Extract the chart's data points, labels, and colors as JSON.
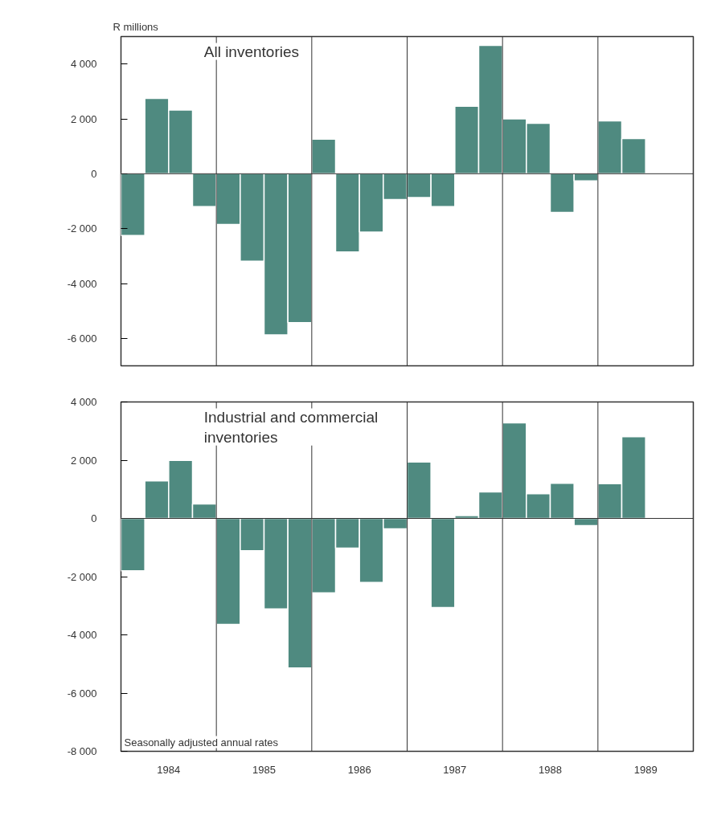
{
  "chart_data": [
    {
      "type": "bar",
      "title": "All inventories",
      "ylabel": "R millions",
      "color": "#4f8a80",
      "x": [
        1984.125,
        1984.375,
        1984.625,
        1984.875,
        1985.125,
        1985.375,
        1985.625,
        1985.875,
        1986.125,
        1986.375,
        1986.625,
        1986.875,
        1987.125,
        1987.375,
        1987.625,
        1987.875,
        1988.125,
        1988.375,
        1988.625,
        1988.875,
        1989.125,
        1989.375
      ],
      "values": [
        -2250,
        2750,
        2320,
        -1200,
        -1850,
        -3190,
        -5870,
        -5430,
        1260,
        -2850,
        -2130,
        -940,
        -870,
        -1200,
        2460,
        4680,
        2000,
        1840,
        -1410,
        -260,
        1930,
        1280
      ],
      "xlim": [
        1984,
        1990
      ],
      "ylim": [
        -7000,
        5000
      ],
      "yticks": [
        {
          "value": 4000,
          "label": "4 000"
        },
        {
          "value": 2000,
          "label": "2 000"
        },
        0,
        {
          "value": -2000,
          "label": "-2 000"
        },
        {
          "value": -4000,
          "label": "-4 000"
        },
        {
          "value": -6000,
          "label": "-6 000"
        }
      ],
      "tick_labels": "y",
      "grid": false,
      "ref_lines": [
        {
          "axis": "y",
          "value": 0
        },
        {
          "axis": "x",
          "value": 1985
        },
        {
          "axis": "x",
          "value": 1986
        },
        {
          "axis": "x",
          "value": 1987
        },
        {
          "axis": "x",
          "value": 1988
        },
        {
          "axis": "x",
          "value": 1989
        }
      ]
    },
    {
      "type": "bar",
      "title": "Industrial and commercial\ninventories",
      "color": "#4f8a80",
      "x": [
        1984.125,
        1984.375,
        1984.625,
        1984.875,
        1985.125,
        1985.375,
        1985.625,
        1985.875,
        1986.125,
        1986.375,
        1986.625,
        1986.875,
        1987.125,
        1987.375,
        1987.625,
        1987.875,
        1988.125,
        1988.375,
        1988.625,
        1988.875,
        1989.125,
        1989.375
      ],
      "values": [
        -1800,
        1290,
        1990,
        500,
        -3640,
        -1110,
        -3110,
        -5140,
        -2560,
        -1020,
        -2200,
        -360,
        1940,
        -3060,
        100,
        910,
        3280,
        850,
        1210,
        -250,
        1190,
        2810
      ],
      "xlim": [
        1984,
        1990
      ],
      "ylim": [
        -8000,
        4000
      ],
      "xticks": [
        {
          "value": 1984.5,
          "label": "1984"
        },
        {
          "value": 1985.5,
          "label": "1985"
        },
        {
          "value": 1986.5,
          "label": "1986"
        },
        {
          "value": 1987.5,
          "label": "1987"
        },
        {
          "value": 1988.5,
          "label": "1988"
        },
        {
          "value": 1989.5,
          "label": "1989"
        }
      ],
      "yticks": [
        {
          "value": 4000,
          "label": "4 000"
        },
        {
          "value": 2000,
          "label": "2 000"
        },
        0,
        {
          "value": -2000,
          "label": "-2 000"
        },
        {
          "value": -4000,
          "label": "-4 000"
        },
        {
          "value": -6000,
          "label": "-6 000"
        },
        {
          "value": -8000,
          "label": "-8 000"
        }
      ],
      "grid": false,
      "annotations": [
        "Seasonally adjusted annual rates"
      ],
      "ref_lines": [
        {
          "axis": "y",
          "value": 0
        },
        {
          "axis": "x",
          "value": 1985
        },
        {
          "axis": "x",
          "value": 1986
        },
        {
          "axis": "x",
          "value": 1987
        },
        {
          "axis": "x",
          "value": 1988
        },
        {
          "axis": "x",
          "value": 1989
        }
      ]
    }
  ]
}
